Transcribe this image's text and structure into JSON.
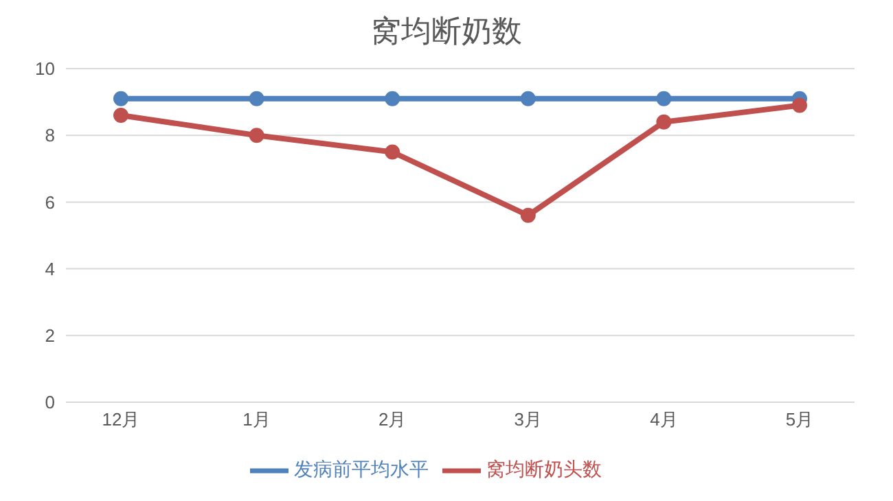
{
  "chart_data": {
    "type": "line",
    "title": "窝均断奶数",
    "categories": [
      "12月",
      "1月",
      "2月",
      "3月",
      "4月",
      "5月"
    ],
    "series": [
      {
        "name": "发病前平均水平",
        "color": "#4f81bd",
        "values": [
          9.1,
          9.1,
          9.1,
          9.1,
          9.1,
          9.1
        ]
      },
      {
        "name": "窝均断奶头数",
        "color": "#c0504d",
        "values": [
          8.6,
          8.0,
          7.5,
          5.6,
          8.4,
          8.9
        ]
      }
    ],
    "ylim": [
      0,
      10
    ],
    "yticks": [
      0,
      2,
      4,
      6,
      8,
      10
    ],
    "grid": "y",
    "legend": "bottom",
    "marker": "circle"
  }
}
